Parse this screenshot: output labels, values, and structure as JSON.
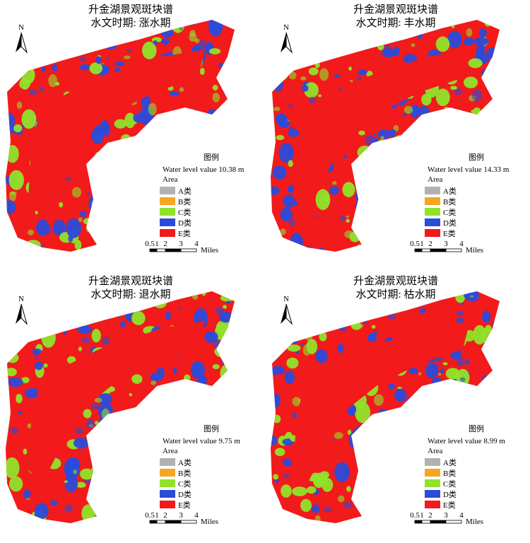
{
  "panels": [
    {
      "title": "升金湖景观斑块谱",
      "subtitle": "水文时期: 涨水期",
      "north": "N",
      "legend": {
        "title": "图例",
        "water_level": "Water level value 10.38 m",
        "field": "Area",
        "classes": [
          {
            "label": "A类",
            "color": "#b2b2b2"
          },
          {
            "label": "B类",
            "color": "#f5a623"
          },
          {
            "label": "C类",
            "color": "#8fe32b"
          },
          {
            "label": "D类",
            "color": "#2b4bd9"
          },
          {
            "label": "E类",
            "color": "#f21a1a"
          }
        ]
      },
      "scale": {
        "ticks": [
          "0.5",
          "1",
          "2",
          "3",
          "4"
        ],
        "unit": "Miles"
      }
    },
    {
      "title": "升金湖景观斑块谱",
      "subtitle": "水文时期: 丰水期",
      "north": "N",
      "legend": {
        "title": "图例",
        "water_level": "Water level value 14.33 m",
        "field": "Area",
        "classes": [
          {
            "label": "A类",
            "color": "#b2b2b2"
          },
          {
            "label": "B类",
            "color": "#f5a623"
          },
          {
            "label": "C类",
            "color": "#8fe32b"
          },
          {
            "label": "D类",
            "color": "#2b4bd9"
          },
          {
            "label": "E类",
            "color": "#f21a1a"
          }
        ]
      },
      "scale": {
        "ticks": [
          "0.5",
          "1",
          "2",
          "3",
          "4"
        ],
        "unit": "Miles"
      }
    },
    {
      "title": "升金湖景观斑块谱",
      "subtitle": "水文时期: 退水期",
      "north": "N",
      "legend": {
        "title": "图例",
        "water_level": "Water level value 9.75 m",
        "field": "Area",
        "classes": [
          {
            "label": "A类",
            "color": "#b2b2b2"
          },
          {
            "label": "B类",
            "color": "#f5a623"
          },
          {
            "label": "C类",
            "color": "#8fe32b"
          },
          {
            "label": "D类",
            "color": "#2b4bd9"
          },
          {
            "label": "E类",
            "color": "#f21a1a"
          }
        ]
      },
      "scale": {
        "ticks": [
          "0.5",
          "1",
          "2",
          "3",
          "4"
        ],
        "unit": "Miles"
      }
    },
    {
      "title": "升金湖景观斑块谱",
      "subtitle": "水文时期: 枯水期",
      "north": "N",
      "legend": {
        "title": "图例",
        "water_level": "Water level value 8.99 m",
        "field": "Area",
        "classes": [
          {
            "label": "A类",
            "color": "#b2b2b2"
          },
          {
            "label": "B类",
            "color": "#f5a623"
          },
          {
            "label": "C类",
            "color": "#8fe32b"
          },
          {
            "label": "D类",
            "color": "#2b4bd9"
          },
          {
            "label": "E类",
            "color": "#f21a1a"
          }
        ]
      },
      "scale": {
        "ticks": [
          "0.5",
          "1",
          "2",
          "3",
          "4"
        ],
        "unit": "Miles"
      }
    }
  ]
}
